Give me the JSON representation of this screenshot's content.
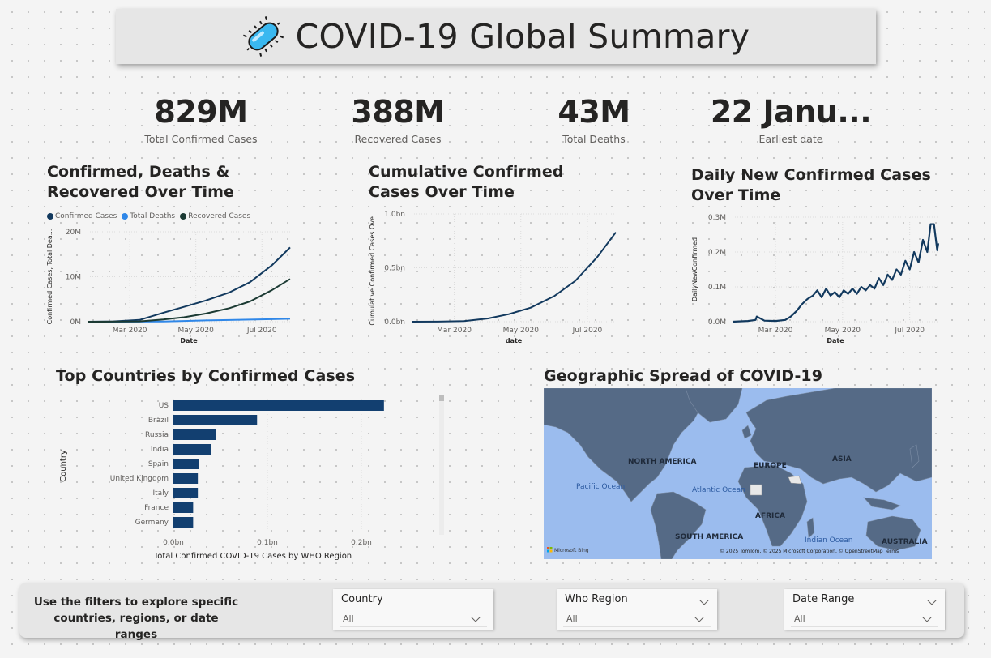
{
  "page": {
    "title": "COVID-19 Global Summary",
    "title_icon": "virus-icon"
  },
  "kpis": [
    {
      "value": "829M",
      "label": "Total Confirmed Cases"
    },
    {
      "value": "388M",
      "label": "Recovered Cases"
    },
    {
      "value": "43M",
      "label": "Total Deaths"
    },
    {
      "value": "22 Janu...",
      "label": "Earliest date"
    }
  ],
  "colors": {
    "confirmed": "#12395e",
    "deaths": "#2f87e8",
    "recovered": "#1b3a33",
    "bar": "#123f70",
    "accent": "#0f3a68"
  },
  "chart_data": [
    {
      "type": "line",
      "title": "Confirmed, Deaths & Recovered Over Time",
      "xlabel": "Date",
      "ylabel": "Confirmed Cases, Total Dea...",
      "x_ticks": [
        "Mar 2020",
        "May 2020",
        "Jul 2020"
      ],
      "y_ticks": [
        "0M",
        "10M",
        "20M"
      ],
      "ylim": [
        0,
        20000000
      ],
      "x_range": [
        "2020-01-22",
        "2020-07-27"
      ],
      "legend": "top-left",
      "grid": true,
      "series": [
        {
          "name": "Confirmed Cases",
          "x": [
            "2020-01-22",
            "2020-02-15",
            "2020-03-10",
            "2020-04-01",
            "2020-04-20",
            "2020-05-10",
            "2020-06-01",
            "2020-06-20",
            "2020-07-10",
            "2020-07-27"
          ],
          "values": [
            0,
            80000,
            400000,
            2000000,
            3300000,
            4700000,
            6500000,
            8800000,
            12500000,
            16500000
          ]
        },
        {
          "name": "Total Deaths",
          "x": [
            "2020-01-22",
            "2020-02-15",
            "2020-03-10",
            "2020-04-01",
            "2020-04-20",
            "2020-05-10",
            "2020-06-01",
            "2020-06-20",
            "2020-07-10",
            "2020-07-27"
          ],
          "values": [
            0,
            2000,
            10000,
            50000,
            170000,
            280000,
            380000,
            460000,
            560000,
            650000
          ]
        },
        {
          "name": "Recovered Cases",
          "x": [
            "2020-01-22",
            "2020-02-15",
            "2020-03-10",
            "2020-04-01",
            "2020-04-20",
            "2020-05-10",
            "2020-06-01",
            "2020-06-20",
            "2020-07-10",
            "2020-07-27"
          ],
          "values": [
            0,
            10000,
            80000,
            500000,
            1000000,
            1800000,
            3000000,
            4500000,
            7000000,
            9500000
          ]
        }
      ]
    },
    {
      "type": "line",
      "title": "Cumulative Confirmed Cases Over Time",
      "xlabel": "date",
      "ylabel": "Cumulative Confirmed Cases Ove...",
      "x_ticks": [
        "Mar 2020",
        "May 2020",
        "Jul 2020"
      ],
      "y_ticks": [
        "0.0bn",
        "0.5bn",
        "1.0bn"
      ],
      "ylim": [
        0,
        1000000000
      ],
      "x_range": [
        "2020-01-22",
        "2020-07-27"
      ],
      "grid": true,
      "series": [
        {
          "x": [
            "2020-01-22",
            "2020-02-15",
            "2020-03-10",
            "2020-04-01",
            "2020-04-20",
            "2020-05-10",
            "2020-06-01",
            "2020-06-20",
            "2020-07-10",
            "2020-07-27"
          ],
          "values": [
            0,
            1000000,
            6000000,
            30000000,
            70000000,
            130000000,
            240000000,
            380000000,
            600000000,
            829000000
          ]
        }
      ]
    },
    {
      "type": "line",
      "title": "Daily New Confirmed Cases Over Time",
      "xlabel": "Date",
      "ylabel": "DailyNewConfirmed",
      "x_ticks": [
        "Mar 2020",
        "May 2020",
        "Jul 2020"
      ],
      "y_ticks": [
        "0.0M",
        "0.1M",
        "0.2M",
        "0.3M"
      ],
      "ylim": [
        0,
        300000
      ],
      "x_range": [
        "2020-01-22",
        "2020-07-27"
      ],
      "grid": true,
      "series": [
        {
          "x": [
            "2020-01-22",
            "2020-02-05",
            "2020-02-12",
            "2020-02-13",
            "2020-02-20",
            "2020-03-01",
            "2020-03-10",
            "2020-03-15",
            "2020-03-20",
            "2020-03-25",
            "2020-03-30",
            "2020-04-04",
            "2020-04-08",
            "2020-04-12",
            "2020-04-16",
            "2020-04-20",
            "2020-04-24",
            "2020-04-28",
            "2020-05-02",
            "2020-05-06",
            "2020-05-10",
            "2020-05-14",
            "2020-05-18",
            "2020-05-22",
            "2020-05-26",
            "2020-05-30",
            "2020-06-03",
            "2020-06-07",
            "2020-06-11",
            "2020-06-15",
            "2020-06-19",
            "2020-06-23",
            "2020-06-27",
            "2020-07-01",
            "2020-07-05",
            "2020-07-09",
            "2020-07-13",
            "2020-07-17",
            "2020-07-20",
            "2020-07-23",
            "2020-07-26",
            "2020-07-27"
          ],
          "values": [
            0,
            2000,
            5000,
            15000,
            3000,
            2000,
            5000,
            15000,
            30000,
            50000,
            65000,
            75000,
            90000,
            70000,
            95000,
            75000,
            85000,
            70000,
            90000,
            80000,
            95000,
            80000,
            100000,
            90000,
            105000,
            95000,
            125000,
            105000,
            135000,
            120000,
            150000,
            135000,
            175000,
            150000,
            200000,
            170000,
            235000,
            200000,
            280000,
            280000,
            205000,
            225000
          ]
        }
      ]
    },
    {
      "type": "bar",
      "orientation": "horizontal",
      "title": "Top Countries by Confirmed Cases",
      "xlabel": "Total Confirmed COVID-19 Cases by WHO Region",
      "ylabel": "Country",
      "x_ticks": [
        "0.0bn",
        "0.1bn",
        "0.2bn"
      ],
      "xlim": [
        0,
        250000000
      ],
      "categories": [
        "US",
        "Brazil",
        "Russia",
        "India",
        "Spain",
        "United Kingdom",
        "Italy",
        "France",
        "Germany"
      ],
      "values": [
        224000000,
        89000000,
        45000000,
        40000000,
        27000000,
        26000000,
        26000000,
        21000000,
        21000000
      ]
    }
  ],
  "map": {
    "title": "Geographic Spread of COVID-19",
    "labels": [
      "NORTH AMERICA",
      "EUROPE",
      "ASIA",
      "AFRICA",
      "SOUTH AMERICA",
      "AUSTRALIA"
    ],
    "oceans": [
      "Pacific Ocean",
      "Atlantic Ocean",
      "Indian Ocean"
    ],
    "attribution": "© 2025 TomTom, © 2025 Microsoft Corporation, © OpenStreetMap  Terms",
    "brand": "Microsoft Bing"
  },
  "filters": {
    "hint": "Use the filters to explore specific countries, regions, or date ranges",
    "slicers": [
      {
        "title": "Country",
        "value": "All"
      },
      {
        "title": "Who Region",
        "value": "All"
      },
      {
        "title": "Date Range",
        "value": "All"
      }
    ]
  }
}
